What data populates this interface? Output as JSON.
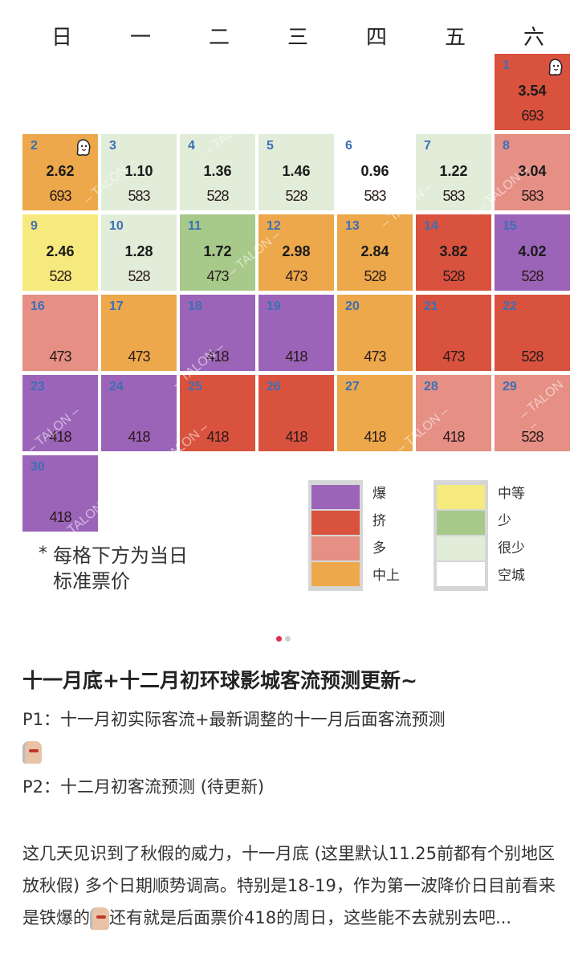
{
  "weekdays": [
    "日",
    "一",
    "二",
    "三",
    "四",
    "五",
    "六"
  ],
  "colors": {
    "爆": "#9b64b8",
    "挤": "#d9523e",
    "多": "#e58f85",
    "中上": "#eca84a",
    "中等": "#f6ea7e",
    "少": "#a7c98a",
    "很少": "#e1ecd9",
    "空城": "#ffffff"
  },
  "chart_data": {
    "type": "heatmap",
    "title": "十一月环球影城客流预测日历",
    "columns": [
      "日",
      "一",
      "二",
      "三",
      "四",
      "五",
      "六"
    ],
    "legend": [
      "爆",
      "挤",
      "多",
      "中上",
      "中等",
      "少",
      "很少",
      "空城"
    ],
    "days": [
      {
        "day": 1,
        "weekday": 6,
        "level": "挤",
        "index": "3.54",
        "price": "693",
        "icon": true
      },
      {
        "day": 2,
        "weekday": 0,
        "level": "中上",
        "index": "2.62",
        "price": "693",
        "icon": true
      },
      {
        "day": 3,
        "weekday": 1,
        "level": "很少",
        "index": "1.10",
        "price": "583"
      },
      {
        "day": 4,
        "weekday": 2,
        "level": "很少",
        "index": "1.36",
        "price": "528"
      },
      {
        "day": 5,
        "weekday": 3,
        "level": "很少",
        "index": "1.46",
        "price": "528"
      },
      {
        "day": 6,
        "weekday": 4,
        "level": "空城",
        "index": "0.96",
        "price": "583"
      },
      {
        "day": 7,
        "weekday": 5,
        "level": "很少",
        "index": "1.22",
        "price": "583"
      },
      {
        "day": 8,
        "weekday": 6,
        "level": "多",
        "index": "3.04",
        "price": "583"
      },
      {
        "day": 9,
        "weekday": 0,
        "level": "中等",
        "index": "2.46",
        "price": "528"
      },
      {
        "day": 10,
        "weekday": 1,
        "level": "很少",
        "index": "1.28",
        "price": "528"
      },
      {
        "day": 11,
        "weekday": 2,
        "level": "少",
        "index": "1.72",
        "price": "473"
      },
      {
        "day": 12,
        "weekday": 3,
        "level": "中上",
        "index": "2.98",
        "price": "473"
      },
      {
        "day": 13,
        "weekday": 4,
        "level": "中上",
        "index": "2.84",
        "price": "528"
      },
      {
        "day": 14,
        "weekday": 5,
        "level": "挤",
        "index": "3.82",
        "price": "528"
      },
      {
        "day": 15,
        "weekday": 6,
        "level": "爆",
        "index": "4.02",
        "price": "528"
      },
      {
        "day": 16,
        "weekday": 0,
        "level": "多",
        "index": "",
        "price": "473"
      },
      {
        "day": 17,
        "weekday": 1,
        "level": "中上",
        "index": "",
        "price": "473"
      },
      {
        "day": 18,
        "weekday": 2,
        "level": "爆",
        "index": "",
        "price": "418"
      },
      {
        "day": 19,
        "weekday": 3,
        "level": "爆",
        "index": "",
        "price": "418"
      },
      {
        "day": 20,
        "weekday": 4,
        "level": "中上",
        "index": "",
        "price": "473"
      },
      {
        "day": 21,
        "weekday": 5,
        "level": "挤",
        "index": "",
        "price": "473"
      },
      {
        "day": 22,
        "weekday": 6,
        "level": "挤",
        "index": "",
        "price": "528"
      },
      {
        "day": 23,
        "weekday": 0,
        "level": "爆",
        "index": "",
        "price": "418"
      },
      {
        "day": 24,
        "weekday": 1,
        "level": "爆",
        "index": "",
        "price": "418"
      },
      {
        "day": 25,
        "weekday": 2,
        "level": "挤",
        "index": "",
        "price": "418"
      },
      {
        "day": 26,
        "weekday": 3,
        "level": "挤",
        "index": "",
        "price": "418"
      },
      {
        "day": 27,
        "weekday": 4,
        "level": "中上",
        "index": "",
        "price": "418"
      },
      {
        "day": 28,
        "weekday": 5,
        "level": "多",
        "index": "",
        "price": "418"
      },
      {
        "day": 29,
        "weekday": 6,
        "level": "多",
        "index": "",
        "price": "528"
      },
      {
        "day": 30,
        "weekday": 0,
        "level": "爆",
        "index": "",
        "price": "418"
      }
    ]
  },
  "note": {
    "star": "*",
    "line1": "每格下方为当日",
    "line2": "标准票价"
  },
  "legend": {
    "left": [
      "爆",
      "挤",
      "多",
      "中上"
    ],
    "right": [
      "中等",
      "少",
      "很少",
      "空城"
    ]
  },
  "watermark": "TALON",
  "carousel": {
    "active": 0,
    "count": 2,
    "active_color": "#e0304a",
    "inactive_color": "#d0d0d0"
  },
  "post": {
    "title": "十一月底+十二月初环球影城客流预测更新~",
    "p1": "P1：十一月初实际客流+最新调整的十一月后面客流预测",
    "p2": "P2：十二月初客流预测 (待更新)",
    "body1": "这几天见识到了秋假的威力，十一月底 (这里默认11.25前都有个别地区放秋假) 多个日期顺势调高。特别是18-19，作为第一波降价日目前看来是铁爆的",
    "body2": "还有就是后面票价418的周日，这些能不去就别去吧..."
  }
}
